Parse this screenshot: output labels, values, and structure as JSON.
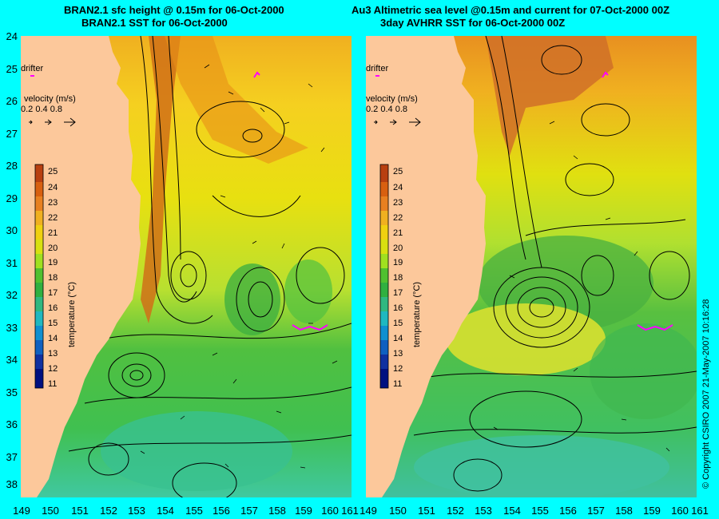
{
  "titles": {
    "left_line1": "BRAN2.1 sfc height @ 0.15m for 06-Oct-2000",
    "left_line2": "BRAN2.1 SST for 06-Oct-2000",
    "right_line1": "Au3 Altimetric sea level  @0.15m and current for 07-Oct-2000 00Z",
    "right_line2": "3day AVHRR SST for 06-Oct-2000 00Z"
  },
  "axes": {
    "lat_labels": [
      "24",
      "25",
      "26",
      "27",
      "28",
      "29",
      "30",
      "31",
      "32",
      "33",
      "34",
      "35",
      "36",
      "37",
      "38"
    ],
    "lon_labels": [
      "149",
      "150",
      "151",
      "152",
      "153",
      "154",
      "155",
      "156",
      "157",
      "158",
      "159",
      "160",
      "161"
    ]
  },
  "inset": {
    "drifter_label": "drifter",
    "velocity_label": "velocity (m/s)",
    "velocity_values": "0.2 0.4 0.8",
    "colorbar_title": "temperature (°C)",
    "colorbar_ticks": [
      "25",
      "24",
      "23",
      "22",
      "21",
      "20",
      "19",
      "18",
      "17",
      "16",
      "15",
      "14",
      "13",
      "12",
      "11"
    ]
  },
  "copyright": "© Copyright CSIRO 2007   21-May-2007 10:16:28",
  "colors": {
    "land": "#fcc89b",
    "background": "#00ffff",
    "drifter": "#ff00ff"
  }
}
